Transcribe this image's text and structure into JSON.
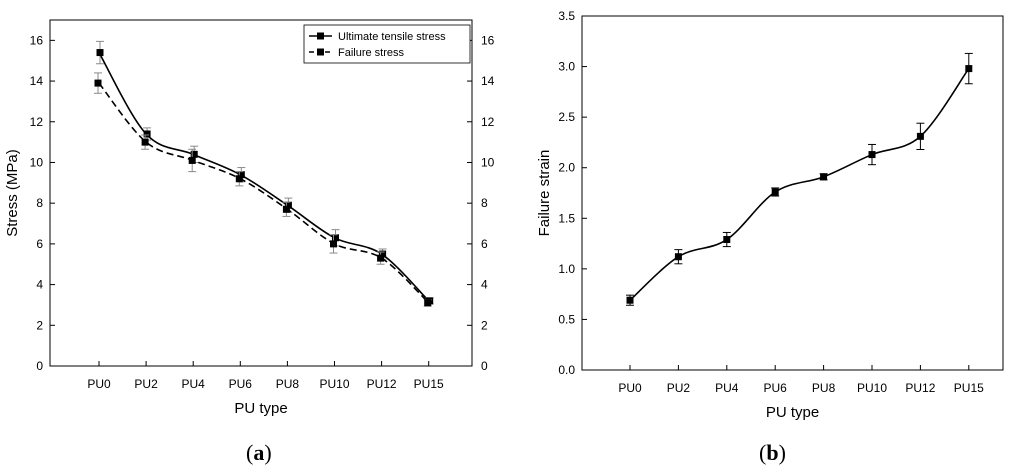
{
  "chart_data": [
    {
      "id": "a",
      "type": "line",
      "panel_label": "a",
      "categories": [
        "PU0",
        "PU2",
        "PU4",
        "PU6",
        "PU8",
        "PU10",
        "PU12",
        "PU15"
      ],
      "xlabel": "PU type",
      "ylabel": "Stress (MPa)",
      "ylim": [
        0,
        17
      ],
      "yticks": [
        "0",
        "2",
        "4",
        "6",
        "8",
        "10",
        "12",
        "14",
        "16"
      ],
      "ytick_values": [
        0,
        2,
        4,
        6,
        8,
        10,
        12,
        14,
        16
      ],
      "right_axis_mirrored": true,
      "legend_position": "top-right",
      "series": [
        {
          "name": "Ultimate tensile stress",
          "style": "solid",
          "values": [
            15.4,
            11.4,
            10.4,
            9.4,
            7.9,
            6.3,
            5.5,
            3.2
          ],
          "errors": [
            0.55,
            0.3,
            0.4,
            0.35,
            0.35,
            0.4,
            0.25,
            0.15
          ]
        },
        {
          "name": "Failure stress",
          "style": "dashed",
          "values": [
            13.9,
            11.0,
            10.1,
            9.2,
            7.7,
            6.0,
            5.3,
            3.1
          ],
          "errors": [
            0.5,
            0.35,
            0.55,
            0.35,
            0.35,
            0.45,
            0.3,
            0.15
          ]
        }
      ]
    },
    {
      "id": "b",
      "type": "line",
      "panel_label": "b",
      "categories": [
        "PU0",
        "PU2",
        "PU4",
        "PU6",
        "PU8",
        "PU10",
        "PU12",
        "PU15"
      ],
      "xlabel": "PU type",
      "ylabel": "Failure strain",
      "ylim": [
        0,
        3.5
      ],
      "yticks": [
        "0.0",
        "0.5",
        "1.0",
        "1.5",
        "2.0",
        "2.5",
        "3.0",
        "3.5"
      ],
      "ytick_values": [
        0,
        0.5,
        1.0,
        1.5,
        2.0,
        2.5,
        3.0,
        3.5
      ],
      "series": [
        {
          "name": "Failure strain",
          "style": "solid",
          "values": [
            0.69,
            1.12,
            1.29,
            1.76,
            1.91,
            2.13,
            2.31,
            2.98
          ],
          "errors": [
            0.05,
            0.07,
            0.07,
            0.04,
            0.03,
            0.1,
            0.13,
            0.15
          ]
        }
      ]
    }
  ]
}
